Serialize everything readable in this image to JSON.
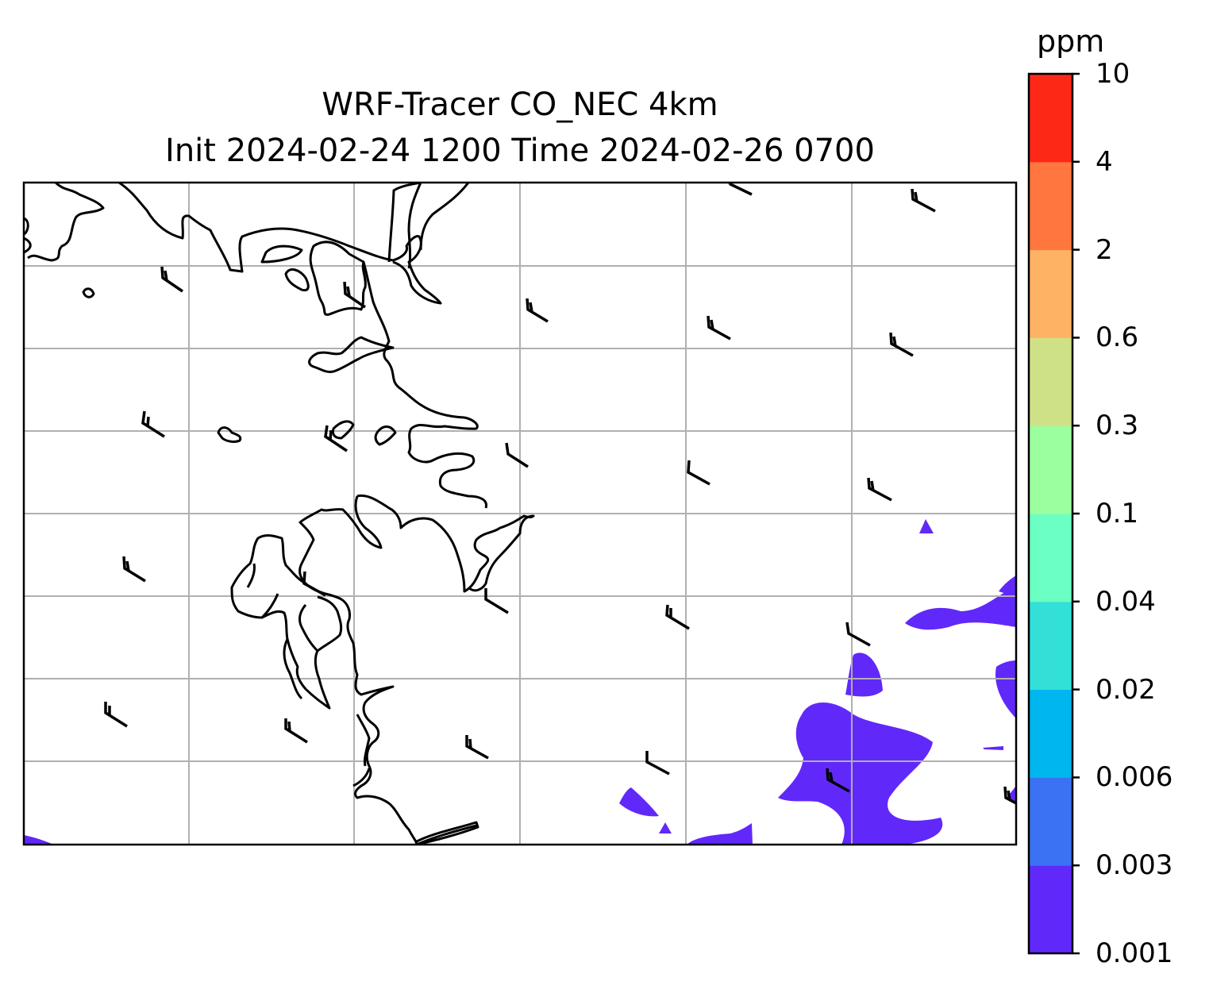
{
  "title": {
    "line1": "WRF-Tracer CO_NEC 4km",
    "line2": "Init 2024-02-24 1200 Time 2024-02-26 0700"
  },
  "colorbar": {
    "unit": "ppm",
    "ticks": [
      "0.001",
      "0.003",
      "0.006",
      "0.02",
      "0.04",
      "0.1",
      "0.3",
      "0.6",
      "2",
      "4",
      "10"
    ],
    "colors": [
      "#6128fa",
      "#3a72f3",
      "#00b6ee",
      "#32e0d8",
      "#6bffc3",
      "#9cff9e",
      "#cfe187",
      "#feb264",
      "#ff763f",
      "#fe2817"
    ]
  },
  "map": {
    "gridlines": true,
    "grid_color": "#b0b0b0",
    "coastline_color": "#000000",
    "field_color": "#6128fa",
    "wind_barbs": "wind-barb-icon"
  }
}
